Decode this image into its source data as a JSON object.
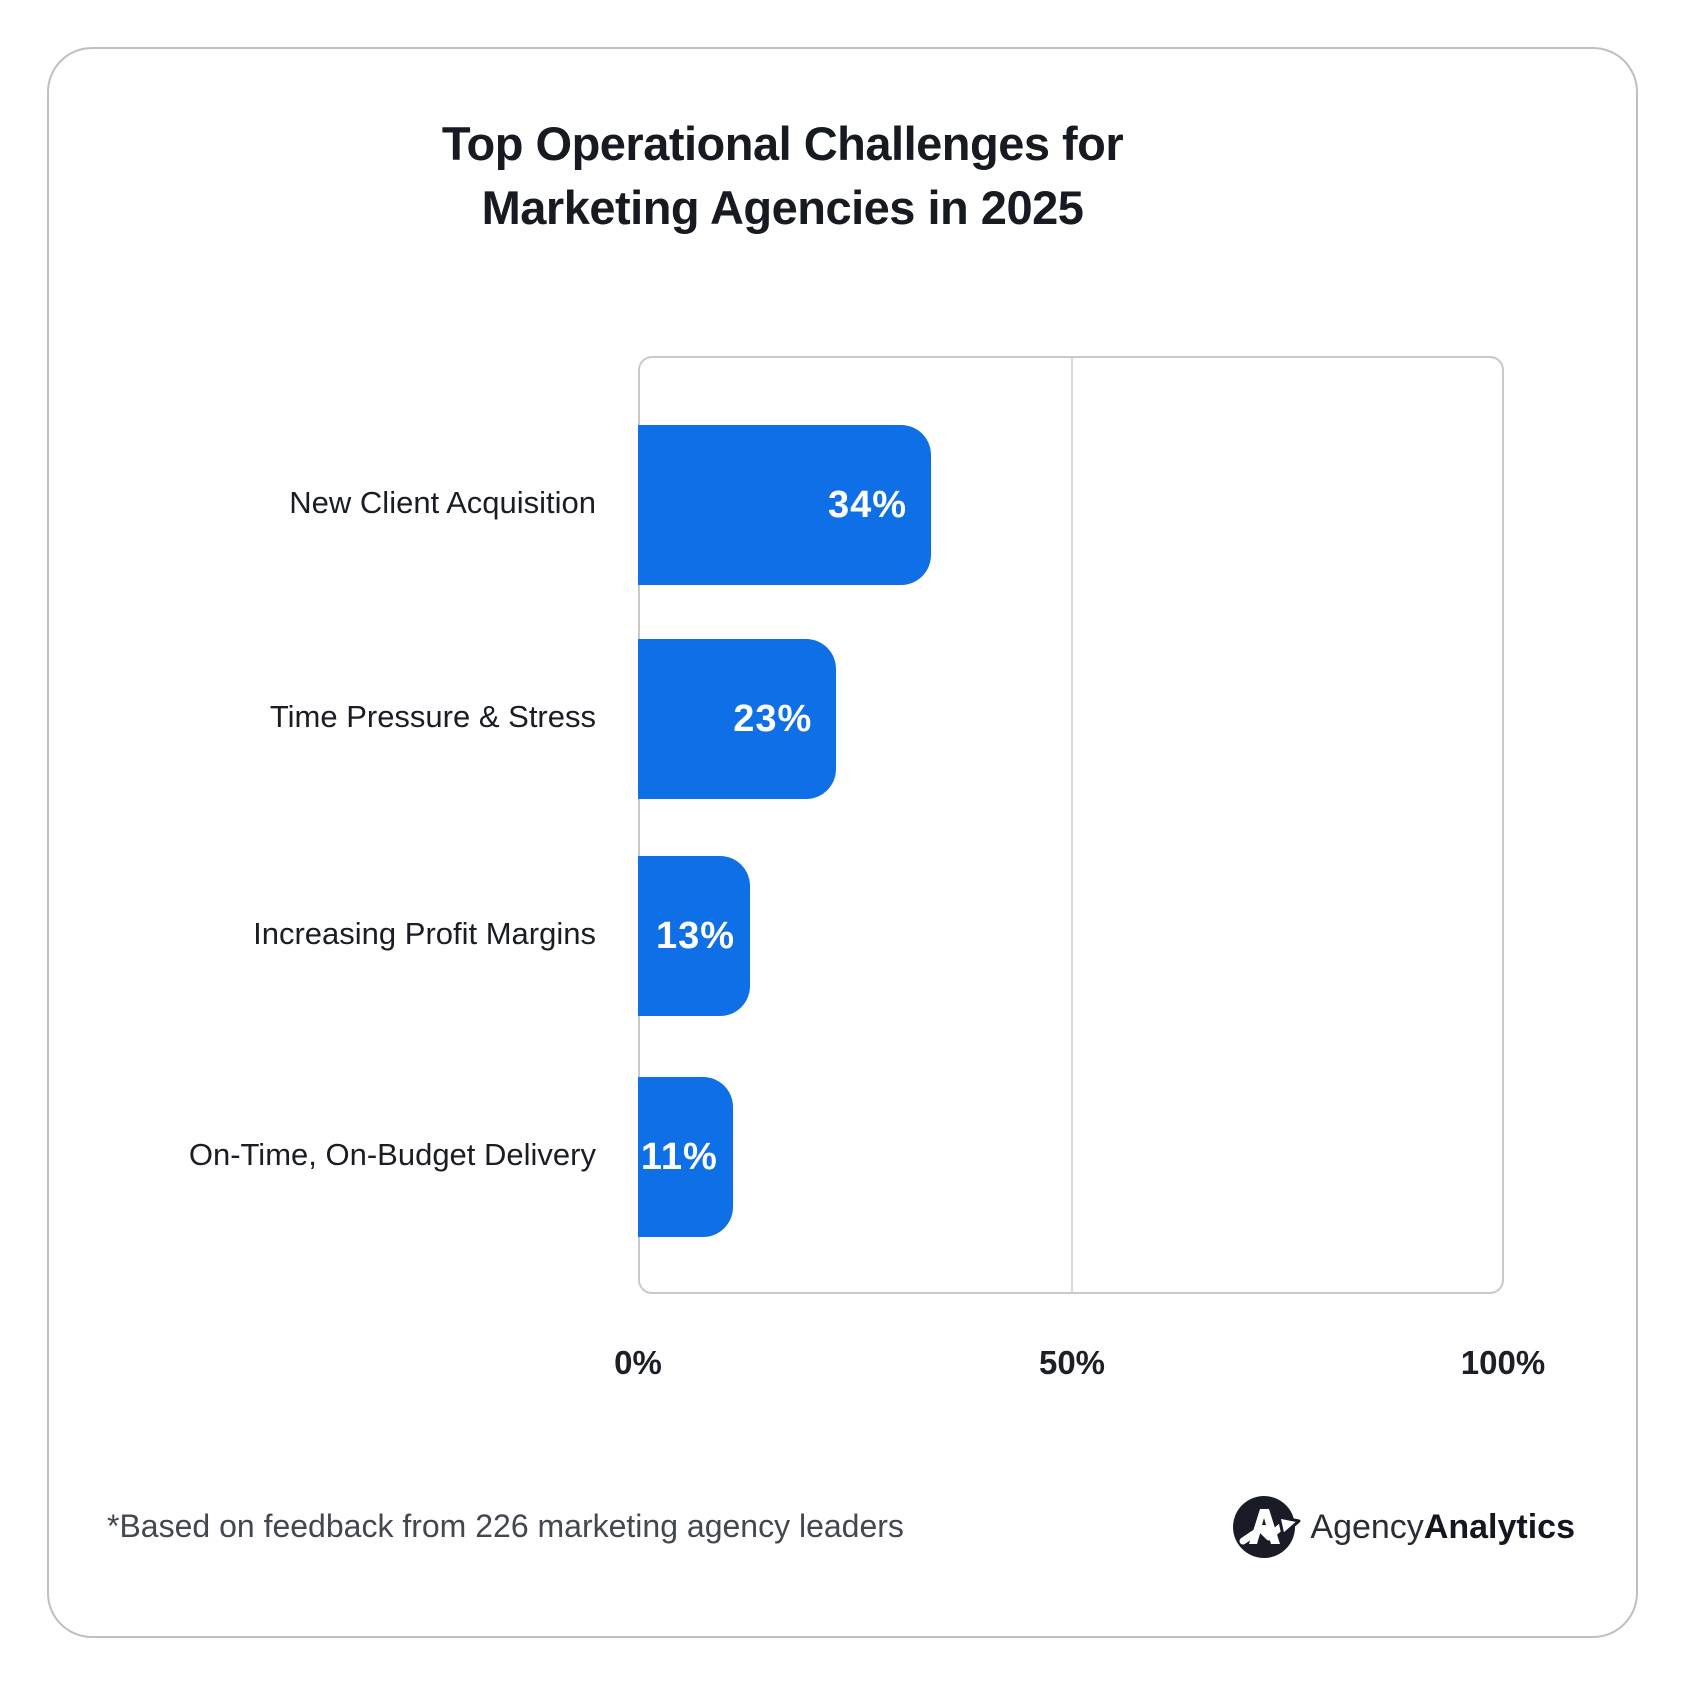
{
  "title": {
    "line1": "Top Operational Challenges for",
    "line2": "Marketing Agencies in 2025"
  },
  "chart_data": {
    "type": "bar",
    "orientation": "horizontal",
    "title": "Top Operational Challenges for Marketing Agencies in 2025",
    "categories": [
      "New Client Acquisition",
      "Time Pressure & Stress",
      "Increasing Profit Margins",
      "On-Time, On-Budget Delivery"
    ],
    "values": [
      34,
      23,
      13,
      11
    ],
    "value_labels": [
      "34%",
      "23%",
      "13%",
      "11%"
    ],
    "x_ticks": [
      "0%",
      "50%",
      "100%"
    ],
    "xlabel": "",
    "ylabel": "",
    "xlim": [
      0,
      100
    ],
    "grid": "single vertical gridline at 50%",
    "legend": "none",
    "bar_color": "#0f6fe6",
    "value_label_position": "inside-right"
  },
  "footer": {
    "note": "*Based on feedback from 226 marketing agency leaders",
    "brand": {
      "regular": "Agency",
      "bold": "Analytics"
    }
  },
  "colors": {
    "bar": "#0f6fe6",
    "title_text": "#171a21",
    "card_border": "#bfbfbf",
    "plot_border": "#c9c9c9",
    "gridline": "#d9d9d9",
    "label_text": "#1a1d24",
    "note_text": "#43474f",
    "brand_dark": "#191c26",
    "background": "#ffffff"
  }
}
